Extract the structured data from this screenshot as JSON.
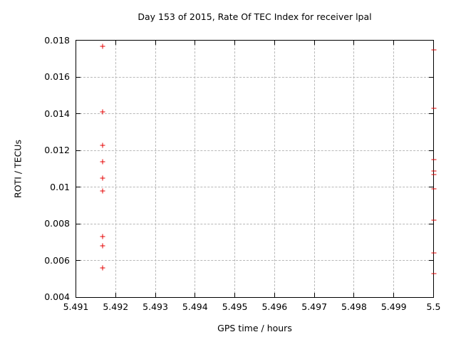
{
  "chart_data": {
    "type": "scatter",
    "title": "Day 153 of 2015, Rate Of TEC Index for receiver lpal",
    "xlabel": "GPS time / hours",
    "ylabel": "ROTI / TECUs",
    "xlim": [
      5.491,
      5.5
    ],
    "ylim": [
      0.004,
      0.018
    ],
    "x_ticks": [
      5.491,
      5.492,
      5.493,
      5.494,
      5.495,
      5.496,
      5.497,
      5.498,
      5.499,
      5.5
    ],
    "x_tick_labels": [
      "5.491",
      "5.492",
      "5.493",
      "5.494",
      "5.495",
      "5.496",
      "5.497",
      "5.498",
      "5.499",
      "5.5"
    ],
    "y_ticks": [
      0.004,
      0.006,
      0.008,
      0.01,
      0.012,
      0.014,
      0.016,
      0.018
    ],
    "y_tick_labels": [
      "0.004",
      "0.006",
      "0.008",
      "0.01",
      "0.012",
      "0.014",
      "0.016",
      "0.018"
    ],
    "grid": true,
    "legend_position": "none",
    "marker": "plus",
    "marker_color": "#e40000",
    "grid_color": "#b8b8b8",
    "series": [
      {
        "name": "ROTI",
        "points": [
          {
            "x": 5.49167,
            "y": 0.0177
          },
          {
            "x": 5.49167,
            "y": 0.0141
          },
          {
            "x": 5.49167,
            "y": 0.0123
          },
          {
            "x": 5.49167,
            "y": 0.0114
          },
          {
            "x": 5.49167,
            "y": 0.0105
          },
          {
            "x": 5.49167,
            "y": 0.0098
          },
          {
            "x": 5.49167,
            "y": 0.0073
          },
          {
            "x": 5.49167,
            "y": 0.0068
          },
          {
            "x": 5.49167,
            "y": 0.0056
          },
          {
            "x": 5.5,
            "y": 0.0175
          },
          {
            "x": 5.5,
            "y": 0.0143
          },
          {
            "x": 5.5,
            "y": 0.0115
          },
          {
            "x": 5.5,
            "y": 0.0109
          },
          {
            "x": 5.5,
            "y": 0.0107
          },
          {
            "x": 5.5,
            "y": 0.0099
          },
          {
            "x": 5.5,
            "y": 0.0082
          },
          {
            "x": 5.5,
            "y": 0.0064
          },
          {
            "x": 5.5,
            "y": 0.0053
          }
        ]
      }
    ]
  }
}
